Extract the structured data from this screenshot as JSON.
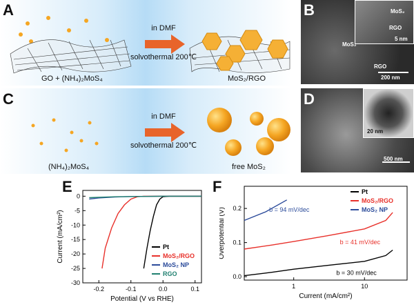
{
  "panels": {
    "A": {
      "letter": "A",
      "reactant_label": "GO + (NH₄)₂MoS₄",
      "arrow_top": "in DMF",
      "arrow_bottom": "solvothermal 200℃",
      "product_label": "MoS₂/RGO"
    },
    "B": {
      "letter": "B",
      "labels": [
        "MoS₂",
        "RGO",
        "MoS₂",
        "RGO"
      ],
      "scalebar_main": "200 nm",
      "scalebar_inset": "5 nm"
    },
    "C": {
      "letter": "C",
      "reactant_label": "(NH₄)₂MoS₄",
      "arrow_top": "in DMF",
      "arrow_bottom": "solvothermal 200℃",
      "product_label": "free MoS₂"
    },
    "D": {
      "letter": "D",
      "scalebar_main": "500 nm",
      "scalebar_inset": "20 nm"
    },
    "E": {
      "letter": "E"
    },
    "F": {
      "letter": "F"
    }
  },
  "colors": {
    "Pt": "#000000",
    "MoS2_RGO": "#e8302a",
    "MoS2_NP": "#2a4a9a",
    "RGO": "#1f7f6f",
    "arrow": "#e8642a",
    "sphere": "#f5a623"
  },
  "chart_data": [
    {
      "panel": "E",
      "type": "line",
      "xlabel": "Potential (V vs RHE)",
      "ylabel": "Current (mA/cm²)",
      "xlim": [
        -0.25,
        0.12
      ],
      "ylim": [
        -30,
        2
      ],
      "xticks": [
        -0.2,
        -0.1,
        0.0,
        0.1
      ],
      "xtick_labels": [
        "-0.2",
        "-0.1",
        "0.0",
        "0.1"
      ],
      "yticks": [
        0,
        -5,
        -10,
        -15,
        -20,
        -25,
        -30
      ],
      "ytick_labels": [
        "0",
        "-5",
        "-10",
        "-15",
        "-20",
        "-25",
        "-30"
      ],
      "legend_position": "bottom-right",
      "series": [
        {
          "name": "Pt",
          "color_key": "Pt",
          "points": [
            [
              -0.06,
              -25
            ],
            [
              -0.05,
              -18
            ],
            [
              -0.04,
              -12
            ],
            [
              -0.03,
              -7
            ],
            [
              -0.02,
              -3
            ],
            [
              -0.01,
              -1
            ],
            [
              0.0,
              -0.2
            ],
            [
              0.02,
              0
            ],
            [
              0.12,
              0
            ]
          ]
        },
        {
          "name": "MoS₂/RGO",
          "color_key": "MoS2_RGO",
          "points": [
            [
              -0.19,
              -25
            ],
            [
              -0.18,
              -18
            ],
            [
              -0.16,
              -11
            ],
            [
              -0.14,
              -6
            ],
            [
              -0.12,
              -3
            ],
            [
              -0.1,
              -1
            ],
            [
              -0.08,
              -0.2
            ],
            [
              -0.06,
              0
            ],
            [
              0.12,
              0
            ]
          ]
        },
        {
          "name": "MoS₂ NP",
          "color_key": "MoS2_NP",
          "points": [
            [
              -0.23,
              -1.0
            ],
            [
              -0.2,
              -0.6
            ],
            [
              -0.15,
              -0.3
            ],
            [
              -0.1,
              -0.1
            ],
            [
              0.0,
              0
            ],
            [
              0.12,
              0
            ]
          ]
        },
        {
          "name": "RGO",
          "color_key": "RGO",
          "points": [
            [
              -0.23,
              -0.5
            ],
            [
              -0.15,
              -0.2
            ],
            [
              0.0,
              0
            ],
            [
              0.12,
              0
            ]
          ]
        }
      ]
    },
    {
      "panel": "F",
      "type": "line",
      "xlabel": "Current (mA/cm²)",
      "ylabel": "Overpotential (V)",
      "xscale": "log",
      "xlim": [
        0.2,
        40
      ],
      "ylim": [
        -0.01,
        0.265
      ],
      "xticks": [
        1,
        10
      ],
      "xtick_labels": [
        "1",
        "10"
      ],
      "yticks": [
        0.0,
        0.1,
        0.2
      ],
      "ytick_labels": [
        "0.0",
        "0.1",
        "0.2"
      ],
      "legend_position": "top-right",
      "series": [
        {
          "name": "Pt",
          "color_key": "Pt",
          "points": [
            [
              0.2,
              0.003
            ],
            [
              0.5,
              0.013
            ],
            [
              1,
              0.022
            ],
            [
              3,
              0.033
            ],
            [
              10,
              0.045
            ],
            [
              20,
              0.062
            ],
            [
              25,
              0.078
            ]
          ]
        },
        {
          "name": "MoS₂/RGO",
          "color_key": "MoS2_RGO",
          "points": [
            [
              0.2,
              0.081
            ],
            [
              0.5,
              0.093
            ],
            [
              1,
              0.103
            ],
            [
              3,
              0.12
            ],
            [
              10,
              0.14
            ],
            [
              20,
              0.165
            ],
            [
              25,
              0.188
            ]
          ]
        },
        {
          "name": "MoS₂ NP",
          "color_key": "MoS2_NP",
          "points": [
            [
              0.2,
              0.165
            ],
            [
              0.4,
              0.19
            ],
            [
              0.8,
              0.225
            ]
          ]
        }
      ],
      "annotations": [
        {
          "text": "b = 94 mV/dec",
          "x": 0.45,
          "y": 0.19,
          "color_key": "MoS2_NP"
        },
        {
          "text": "b = 41 mV/dec",
          "x": 4.5,
          "y": 0.095,
          "color_key": "MoS2_RGO"
        },
        {
          "text": "b = 30 mV/dec",
          "x": 4.0,
          "y": 0.005,
          "color_key": "Pt"
        }
      ]
    }
  ]
}
